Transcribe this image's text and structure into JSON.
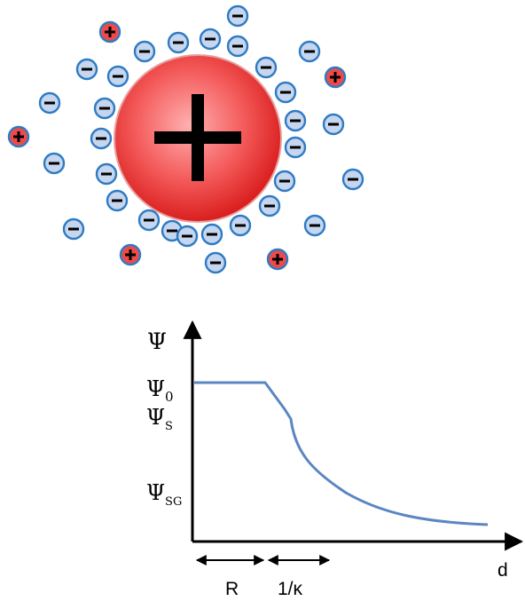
{
  "colors": {
    "anion_fill": "#c6d6ee",
    "anion_stroke": "#2e7bc4",
    "cation_fill": "#ef4a4a",
    "cation_stroke": "#2e7bc4",
    "particle_center": "#ff9a9a",
    "particle_edge": "#e01818",
    "curve": "#5b86c2",
    "axis": "#000000"
  },
  "particle": {
    "sign": "+",
    "name": "colloidal-particle"
  },
  "ions": {
    "anion_sign": "−",
    "cation_sign": "+"
  },
  "graph": {
    "y_axis_symbol": "Ψ",
    "psi_0": {
      "base": "Ψ",
      "sub": "0"
    },
    "psi_s": {
      "base": "Ψ",
      "sub": "S"
    },
    "psi_sg": {
      "base": "Ψ",
      "sub": "SG"
    },
    "x_axis_symbol": "d",
    "span_r": "R",
    "span_kappa": "1/κ"
  }
}
